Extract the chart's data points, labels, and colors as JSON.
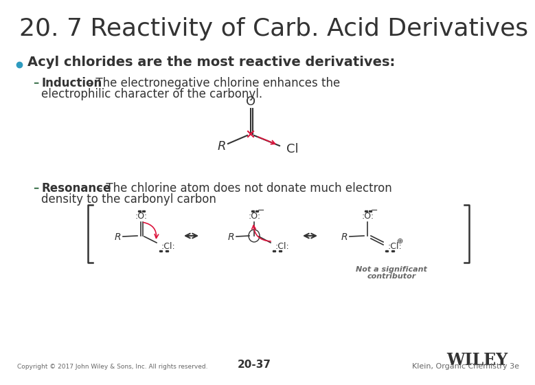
{
  "title": "20. 7 Reactivity of Carb. Acid Derivatives",
  "bg_color": "#ffffff",
  "title_color": "#333333",
  "title_fontsize": 26,
  "bullet_color": "#2e9bbf",
  "bullet_text": "Acyl chlorides are the most reactive derivatives:",
  "bullet_fontsize": 14,
  "sub_fontsize": 13,
  "sub1_bold": "Induction",
  "sub2_bold": "Resonance",
  "footer_left": "Copyright © 2017 John Wiley & Sons, Inc. All rights reserved.",
  "footer_center": "20-37",
  "footer_right_line1": "Not a significant",
  "footer_right_line2": "contributor",
  "footer_wiley": "WILEY",
  "footer_klein": "Klein, Organic Chemistry 3e",
  "text_color": "#333333",
  "gray_color": "#666666",
  "dash_color": "#4a7c59"
}
